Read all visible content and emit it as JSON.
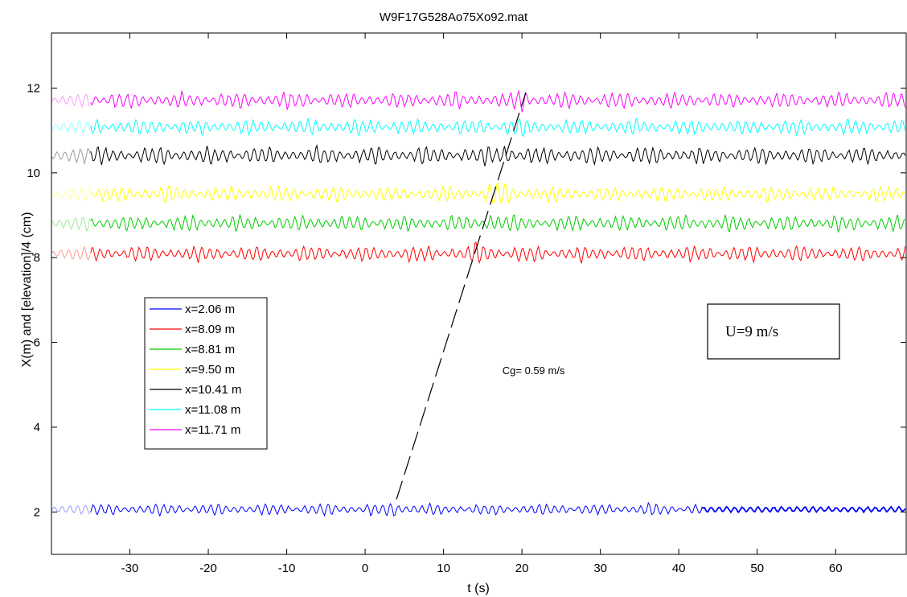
{
  "chart_data": {
    "type": "line",
    "title": "W9F17G528Ao75Xo92.mat",
    "xlabel": "t (s)",
    "ylabel": "X(m) and  [elevation]/4 (cm)",
    "xlim": [
      -40,
      69
    ],
    "ylim": [
      1,
      13.3
    ],
    "xticks": [
      -30,
      -20,
      -10,
      0,
      10,
      20,
      30,
      40,
      50,
      60
    ],
    "yticks": [
      2,
      4,
      6,
      8,
      10,
      12
    ],
    "grid": false,
    "legend_position": "center-left",
    "series": [
      {
        "name": "x=2.06 m",
        "color": "#0000ff",
        "x_m": 2.06,
        "amplitude": 0.15,
        "t_start": -35,
        "t_end": 43,
        "burst_t": 4
      },
      {
        "name": "x=8.09 m",
        "color": "#ff0000",
        "x_m": 8.09,
        "amplitude": 0.2,
        "t_start": -35,
        "t_end": 69,
        "burst_t": 15
      },
      {
        "name": "x=8.81 m",
        "color": "#00cc00",
        "x_m": 8.81,
        "amplitude": 0.2,
        "t_start": -35,
        "t_end": 69,
        "burst_t": 16
      },
      {
        "name": "x=9.50 m",
        "color": "#ffff00",
        "x_m": 9.5,
        "amplitude": 0.2,
        "t_start": -35,
        "t_end": 69,
        "burst_t": 17
      },
      {
        "name": "x=10.41 m",
        "color": "#000000",
        "x_m": 10.41,
        "amplitude": 0.22,
        "t_start": -35,
        "t_end": 69,
        "burst_t": 18
      },
      {
        "name": "x=11.08 m",
        "color": "#00ffff",
        "x_m": 11.08,
        "amplitude": 0.2,
        "t_start": -35,
        "t_end": 69,
        "burst_t": 19
      },
      {
        "name": "x=11.71 m",
        "color": "#ff00ff",
        "x_m": 11.71,
        "amplitude": 0.2,
        "t_start": -35,
        "t_end": 69,
        "burst_t": 20
      }
    ],
    "guide_line": {
      "t": [
        4,
        20.5
      ],
      "x": [
        2.3,
        11.9
      ],
      "style": "dashed",
      "color": "#000000"
    },
    "annotations": [
      {
        "text": "Cg=  0.59  m/s",
        "t": 17.5,
        "y": 5.25
      },
      {
        "text": "U=9 m/s",
        "t": 55.5,
        "y": 6.2,
        "boxed": true
      }
    ]
  }
}
